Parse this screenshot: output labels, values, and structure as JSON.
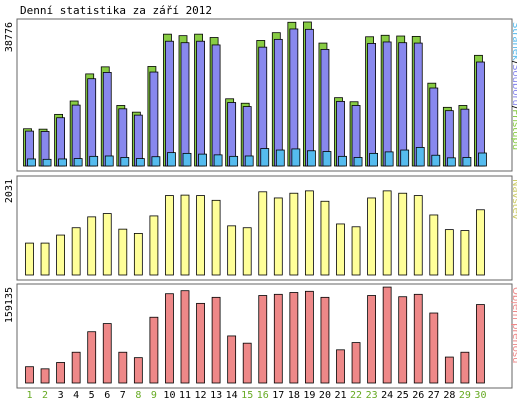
{
  "chart_data": {
    "type": "bar",
    "title": "Denní statistika za září 2012",
    "categories": [
      "1",
      "2",
      "3",
      "4",
      "5",
      "6",
      "7",
      "8",
      "9",
      "10",
      "11",
      "12",
      "13",
      "14",
      "15",
      "16",
      "17",
      "18",
      "19",
      "20",
      "21",
      "22",
      "23",
      "24",
      "25",
      "26",
      "27",
      "28",
      "29",
      "30"
    ],
    "weekend_days": [
      "1",
      "2",
      "8",
      "9",
      "15",
      "16",
      "22",
      "23",
      "29",
      "30"
    ],
    "colors": {
      "hits": "#88cc44",
      "files": "#8888ee",
      "pages": "#55bbee",
      "visits": "#ffff99",
      "kbytes": "#ee8888",
      "weekday_label": "#000000",
      "weekend_label": "#66aa22",
      "border": "#666666"
    },
    "panels": [
      {
        "id": "requests",
        "ymax_label": "38776",
        "ylim": [
          0,
          38776
        ],
        "legend": [
          {
            "text": "Stránek",
            "color": "#55bbee"
          },
          {
            "text": "/",
            "color": "#000000"
          },
          {
            "text": "Souborů",
            "color": "#8888ee"
          },
          {
            "text": "/",
            "color": "#000000"
          },
          {
            "text": "Přístupů",
            "color": "#88cc44"
          }
        ],
        "series": [
          {
            "name": "Přístupů",
            "values": [
              10030,
              9920,
              13900,
              17500,
              24800,
              26700,
              16300,
              14500,
              26800,
              35500,
              35100,
              35500,
              34600,
              18100,
              16900,
              33800,
              35900,
              38700,
              38776,
              33100,
              18400,
              17300,
              34800,
              35200,
              35000,
              34900,
              22300,
              15800,
              16300,
              29800
            ]
          },
          {
            "name": "Souborů",
            "values": [
              9400,
              9300,
              13000,
              16400,
              23500,
              25200,
              15400,
              13700,
              25300,
              33600,
              33200,
              33600,
              32600,
              17100,
              16000,
              32000,
              34100,
              36900,
              36800,
              31400,
              17400,
              16300,
              33000,
              33400,
              33200,
              33100,
              21000,
              14900,
              15300,
              28000
            ]
          },
          {
            "name": "Stránek",
            "values": [
              1900,
              1800,
              1900,
              2000,
              2600,
              2700,
              2300,
              2000,
              2500,
              3600,
              3400,
              3200,
              3000,
              2600,
              2700,
              4700,
              4300,
              4600,
              4100,
              3900,
              2600,
              2300,
              3400,
              3800,
              4300,
              5000,
              2900,
              2200,
              2300,
              3500
            ]
          }
        ]
      },
      {
        "id": "visits",
        "ymax_label": "2031",
        "ylim": [
          0,
          2031
        ],
        "legend": [
          {
            "text": "Návštěv",
            "color": "#cccc66"
          }
        ],
        "series": [
          {
            "name": "Návštěv",
            "values": [
              675,
              675,
              845,
              1000,
              1230,
              1300,
              970,
              880,
              1250,
              1680,
              1690,
              1680,
              1580,
              1040,
              1000,
              1760,
              1630,
              1730,
              1780,
              1560,
              1080,
              1020,
              1630,
              1780,
              1730,
              1680,
              1270,
              960,
              940,
              1380
            ]
          }
        ]
      },
      {
        "id": "kbytes",
        "ymax_label": "159135",
        "ylim": [
          0,
          159135
        ],
        "legend": [
          {
            "text": "Objem přenosu",
            "color": "#ee8888"
          }
        ],
        "series": [
          {
            "name": "Objem přenosu",
            "values": [
              27000,
              23500,
              34000,
              51000,
              85000,
              98500,
              51000,
              42000,
              109000,
              148000,
              153000,
              132000,
              142000,
              78000,
              66000,
              145000,
              147000,
              150000,
              152000,
              142000,
              55000,
              67000,
              145000,
              159000,
              143000,
              147000,
              116000,
              43000,
              51000,
              130000
            ]
          }
        ]
      }
    ]
  }
}
